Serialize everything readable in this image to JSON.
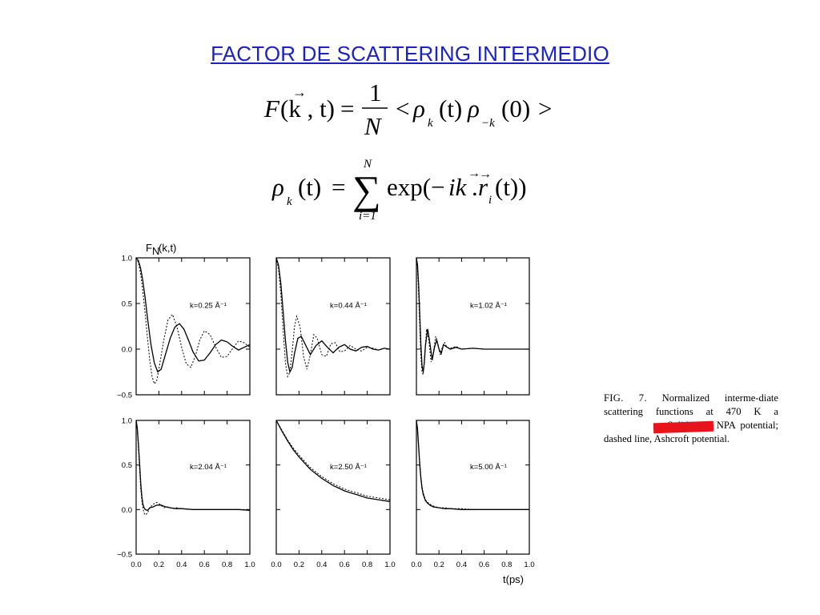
{
  "title": "FACTOR DE SCATTERING INTERMEDIO",
  "equation1": {
    "lhs": "F",
    "args": "(k , t)",
    "equals": "=",
    "frac_num": "1",
    "frac_den": "N",
    "lt": "<",
    "rho": "ρ",
    "t_arg": "(t)",
    "zero_arg": "(0)",
    "gt": ">",
    "sub_k": "k",
    "sub_minus_k": "−k"
  },
  "equation2": {
    "rho": "ρ",
    "sub_k": "k",
    "t_arg": "(t)",
    "equals": "=",
    "sigma": "∑",
    "upper": "N",
    "lower": "i=1",
    "body_exp": "exp(−",
    "body_ik": "ik",
    "body_dot": ".",
    "body_r": "r",
    "body_i": "i",
    "body_tail": "(t))"
  },
  "y_axis_label": "F",
  "y_axis_label_sub": "N",
  "y_axis_label_args": "(k,t)",
  "x_axis_label": "t(ps)",
  "caption": {
    "fig_label": "FIG. 7.",
    "text_before_redaction": "Normalized interme-diate scattering functions at 470 K a",
    "text_after_redaction": ". Solid line, NPA potential; dashed line, Ashcroft potential."
  },
  "chart_data": [
    {
      "type": "line",
      "label": "k=0.25 Å⁻¹",
      "xlim": [
        0,
        1.0
      ],
      "ylim": [
        -0.5,
        1.0
      ],
      "y_ticks": [
        "1.0",
        "0.5",
        "0.0",
        "−0.5"
      ],
      "series": [
        {
          "style": "solid",
          "x": [
            0,
            0.02,
            0.04,
            0.06,
            0.08,
            0.1,
            0.13,
            0.16,
            0.19,
            0.22,
            0.26,
            0.3,
            0.34,
            0.38,
            0.42,
            0.46,
            0.5,
            0.55,
            0.6,
            0.65,
            0.7,
            0.75,
            0.8,
            0.85,
            0.9,
            0.95,
            1.0
          ],
          "y": [
            1.0,
            0.97,
            0.88,
            0.74,
            0.55,
            0.34,
            0.05,
            -0.15,
            -0.25,
            -0.22,
            -0.05,
            0.12,
            0.24,
            0.28,
            0.22,
            0.1,
            -0.03,
            -0.13,
            -0.12,
            -0.04,
            0.05,
            0.1,
            0.08,
            0.03,
            -0.01,
            0.02,
            0.05
          ]
        },
        {
          "style": "dashed",
          "x": [
            0,
            0.02,
            0.04,
            0.06,
            0.08,
            0.1,
            0.12,
            0.14,
            0.16,
            0.18,
            0.2,
            0.24,
            0.28,
            0.32,
            0.36,
            0.4,
            0.44,
            0.48,
            0.52,
            0.56,
            0.6,
            0.65,
            0.7,
            0.75,
            0.8,
            0.85,
            0.9,
            0.95,
            1.0
          ],
          "y": [
            1.0,
            0.95,
            0.82,
            0.62,
            0.38,
            0.12,
            -0.12,
            -0.3,
            -0.38,
            -0.35,
            -0.22,
            0.08,
            0.32,
            0.38,
            0.24,
            0.02,
            -0.16,
            -0.2,
            -0.08,
            0.1,
            0.2,
            0.16,
            0.02,
            -0.09,
            -0.08,
            0.01,
            0.09,
            0.07,
            0.02
          ]
        }
      ]
    },
    {
      "type": "line",
      "label": "k=0.44 Å⁻¹",
      "xlim": [
        0,
        1.0
      ],
      "ylim": [
        -0.5,
        1.0
      ],
      "series": [
        {
          "style": "solid",
          "x": [
            0,
            0.02,
            0.04,
            0.06,
            0.08,
            0.1,
            0.12,
            0.14,
            0.16,
            0.19,
            0.22,
            0.26,
            0.3,
            0.35,
            0.4,
            0.45,
            0.5,
            0.55,
            0.6,
            0.65,
            0.7,
            0.75,
            0.8,
            0.85,
            0.9,
            0.95,
            1.0
          ],
          "y": [
            1.0,
            0.92,
            0.72,
            0.42,
            0.1,
            -0.14,
            -0.25,
            -0.2,
            -0.05,
            0.12,
            0.14,
            0.04,
            -0.06,
            0.04,
            0.09,
            0.02,
            -0.04,
            0.02,
            0.05,
            0.0,
            -0.02,
            0.02,
            0.03,
            0.0,
            -0.01,
            0.01,
            0.0
          ]
        },
        {
          "style": "dashed",
          "x": [
            0,
            0.02,
            0.04,
            0.06,
            0.08,
            0.1,
            0.12,
            0.14,
            0.16,
            0.18,
            0.21,
            0.24,
            0.27,
            0.3,
            0.33,
            0.36,
            0.4,
            0.44,
            0.48,
            0.52,
            0.56,
            0.6,
            0.65,
            0.7,
            0.75,
            0.8,
            0.85,
            0.9,
            0.95,
            1.0
          ],
          "y": [
            1.0,
            0.88,
            0.6,
            0.22,
            -0.15,
            -0.3,
            -0.25,
            -0.02,
            0.24,
            0.36,
            0.24,
            -0.08,
            -0.22,
            -0.06,
            0.16,
            0.12,
            -0.06,
            -0.08,
            0.06,
            0.07,
            -0.03,
            -0.02,
            0.04,
            0.0,
            -0.02,
            0.02,
            0.01,
            -0.01,
            0.01,
            0.0
          ]
        }
      ]
    },
    {
      "type": "line",
      "label": "k=1.02 Å⁻¹",
      "xlim": [
        0,
        1.0
      ],
      "ylim": [
        -0.5,
        1.0
      ],
      "series": [
        {
          "style": "solid",
          "x": [
            0,
            0.01,
            0.02,
            0.03,
            0.04,
            0.05,
            0.06,
            0.07,
            0.08,
            0.1,
            0.12,
            0.14,
            0.16,
            0.18,
            0.2,
            0.22,
            0.24,
            0.26,
            0.3,
            0.35,
            0.4,
            0.5,
            0.6,
            0.7,
            0.8,
            0.9,
            1.0
          ],
          "y": [
            1.0,
            0.92,
            0.7,
            0.38,
            0.05,
            -0.18,
            -0.25,
            -0.15,
            0.04,
            0.22,
            0.06,
            -0.12,
            0.02,
            0.1,
            0.0,
            -0.05,
            0.05,
            0.03,
            0.0,
            0.02,
            0.0,
            0.01,
            0.0,
            0.0,
            0.0,
            0.0,
            0.0
          ]
        },
        {
          "style": "dashed",
          "x": [
            0,
            0.01,
            0.02,
            0.03,
            0.04,
            0.05,
            0.06,
            0.07,
            0.09,
            0.11,
            0.13,
            0.15,
            0.17,
            0.19,
            0.21,
            0.23,
            0.25,
            0.27,
            0.3,
            0.35,
            0.4,
            0.5,
            0.6,
            0.7,
            0.8,
            0.9,
            1.0
          ],
          "y": [
            1.0,
            0.88,
            0.6,
            0.25,
            -0.08,
            -0.25,
            -0.28,
            -0.12,
            0.22,
            0.1,
            -0.14,
            -0.04,
            0.14,
            0.06,
            -0.06,
            0.02,
            0.07,
            0.02,
            0.01,
            0.03,
            0.0,
            0.01,
            0.0,
            0.0,
            0.0,
            0.0,
            0.0
          ]
        }
      ]
    },
    {
      "type": "line",
      "label": "k=2.04 Å⁻¹",
      "xlim": [
        0,
        1.0
      ],
      "ylim": [
        -0.5,
        1.0
      ],
      "y_ticks": [
        "1.0",
        "0.5",
        "0.0",
        "−0.5"
      ],
      "series": [
        {
          "style": "solid",
          "x": [
            0,
            0.01,
            0.02,
            0.03,
            0.04,
            0.05,
            0.06,
            0.07,
            0.08,
            0.1,
            0.12,
            0.15,
            0.18,
            0.22,
            0.26,
            0.3,
            0.35,
            0.4,
            0.5,
            0.6,
            0.7,
            0.8,
            0.9,
            1.0
          ],
          "y": [
            1.0,
            0.92,
            0.74,
            0.52,
            0.3,
            0.15,
            0.06,
            0.02,
            0.0,
            -0.01,
            0.02,
            0.03,
            0.05,
            0.05,
            0.03,
            0.02,
            0.01,
            0.01,
            0.0,
            0.0,
            0.0,
            0.0,
            0.0,
            -0.01
          ]
        },
        {
          "style": "dashed",
          "x": [
            0,
            0.01,
            0.02,
            0.03,
            0.04,
            0.05,
            0.06,
            0.07,
            0.08,
            0.1,
            0.12,
            0.15,
            0.18,
            0.21,
            0.24,
            0.28,
            0.32,
            0.36,
            0.4,
            0.5,
            0.6,
            0.7,
            0.8,
            0.9,
            1.0
          ],
          "y": [
            1.0,
            0.9,
            0.7,
            0.46,
            0.24,
            0.1,
            0.01,
            -0.04,
            -0.06,
            -0.04,
            0.02,
            0.06,
            0.08,
            0.06,
            0.02,
            0.03,
            0.01,
            0.02,
            0.01,
            0.0,
            0.0,
            0.0,
            0.0,
            0.0,
            0.0
          ]
        }
      ]
    },
    {
      "type": "line",
      "label": "k=2.50 Å⁻¹",
      "xlim": [
        0,
        1.0
      ],
      "ylim": [
        -0.5,
        1.0
      ],
      "series": [
        {
          "style": "solid",
          "x": [
            0,
            0.05,
            0.1,
            0.15,
            0.2,
            0.25,
            0.3,
            0.35,
            0.4,
            0.45,
            0.5,
            0.55,
            0.6,
            0.65,
            0.7,
            0.75,
            0.8,
            0.85,
            0.9,
            0.95,
            1.0
          ],
          "y": [
            1.0,
            0.88,
            0.77,
            0.67,
            0.59,
            0.52,
            0.45,
            0.4,
            0.35,
            0.31,
            0.27,
            0.24,
            0.21,
            0.19,
            0.17,
            0.15,
            0.13,
            0.12,
            0.11,
            0.1,
            0.09
          ]
        },
        {
          "style": "dashed",
          "x": [
            0,
            0.05,
            0.1,
            0.15,
            0.2,
            0.25,
            0.3,
            0.35,
            0.4,
            0.45,
            0.5,
            0.55,
            0.6,
            0.65,
            0.7,
            0.75,
            0.8,
            0.85,
            0.9,
            0.95,
            1.0
          ],
          "y": [
            1.0,
            0.89,
            0.78,
            0.69,
            0.61,
            0.54,
            0.47,
            0.42,
            0.37,
            0.33,
            0.29,
            0.26,
            0.23,
            0.21,
            0.19,
            0.17,
            0.15,
            0.14,
            0.13,
            0.12,
            0.11
          ]
        }
      ]
    },
    {
      "type": "line",
      "label": "k=5.00 Å⁻¹",
      "xlim": [
        0,
        1.0
      ],
      "ylim": [
        -0.5,
        1.0
      ],
      "series": [
        {
          "style": "solid",
          "x": [
            0,
            0.01,
            0.02,
            0.03,
            0.04,
            0.05,
            0.06,
            0.08,
            0.1,
            0.12,
            0.15,
            0.2,
            0.25,
            0.3,
            0.4,
            0.5,
            0.6,
            0.7,
            0.8,
            0.9,
            1.0
          ],
          "y": [
            1.0,
            0.9,
            0.7,
            0.5,
            0.35,
            0.24,
            0.17,
            0.1,
            0.07,
            0.05,
            0.03,
            0.02,
            0.01,
            0.01,
            0.0,
            0.0,
            0.0,
            0.0,
            0.0,
            0.0,
            0.0
          ]
        },
        {
          "style": "dashed",
          "x": [
            0,
            0.01,
            0.02,
            0.03,
            0.04,
            0.05,
            0.06,
            0.08,
            0.1,
            0.12,
            0.15,
            0.2,
            0.25,
            0.3,
            0.4,
            0.5,
            0.6,
            0.7,
            0.8,
            0.9,
            1.0
          ],
          "y": [
            1.0,
            0.91,
            0.72,
            0.53,
            0.37,
            0.26,
            0.19,
            0.11,
            0.08,
            0.06,
            0.04,
            0.02,
            0.02,
            0.01,
            0.01,
            0.0,
            0.0,
            0.0,
            0.0,
            0.0,
            0.0
          ]
        }
      ]
    }
  ],
  "x_ticks": [
    "0.0",
    "0.2",
    "0.4",
    "0.6",
    "0.8",
    "1.0"
  ]
}
